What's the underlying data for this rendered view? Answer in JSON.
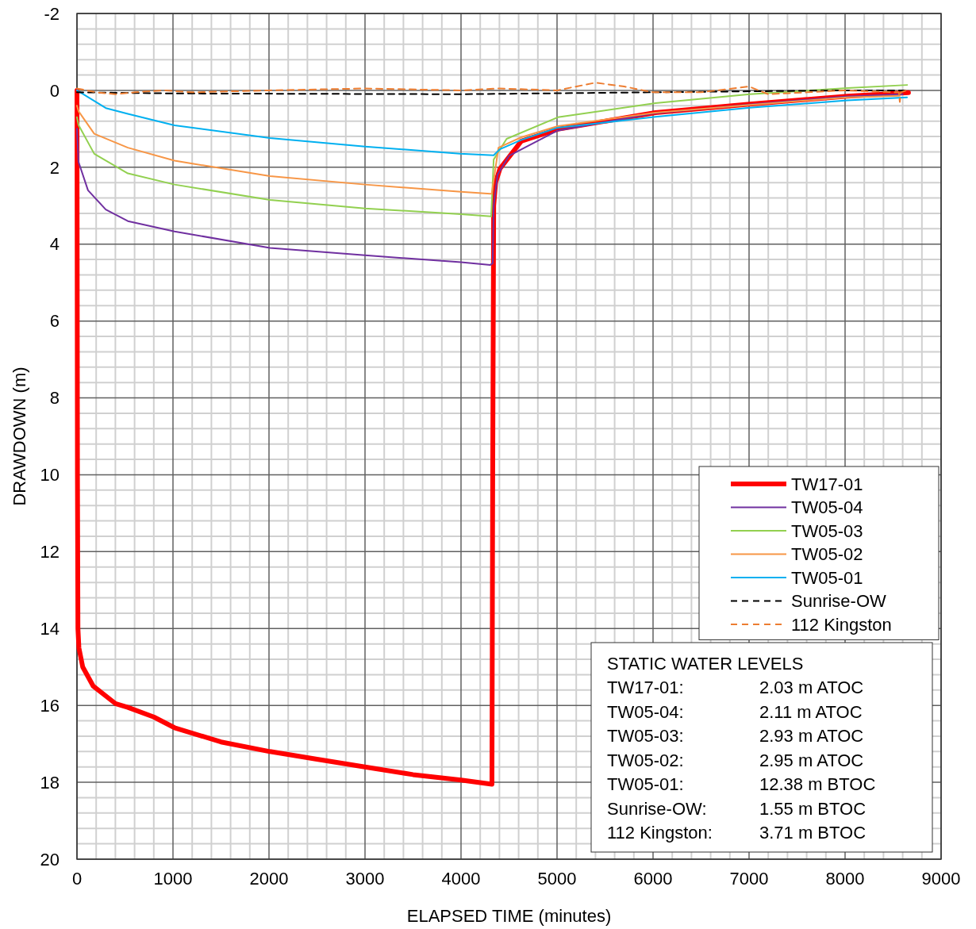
{
  "chart_data": {
    "type": "line",
    "xlabel": "ELAPSED TIME (minutes)",
    "ylabel": "DRAWDOWN (m)",
    "xlim": [
      0,
      9000
    ],
    "xticks": [
      0,
      1000,
      2000,
      3000,
      4000,
      5000,
      6000,
      7000,
      8000,
      9000
    ],
    "ylim": [
      20,
      -2
    ],
    "yticks": [
      -2,
      0,
      2,
      4,
      6,
      8,
      10,
      12,
      14,
      16,
      18,
      20
    ],
    "grid": true,
    "legend": "bottom right",
    "series": [
      {
        "name": "TW17-01",
        "color": "#ff0000",
        "line_style": "solid",
        "x": [
          0,
          5,
          10,
          20,
          60,
          170,
          400,
          530,
          800,
          1016,
          1500,
          2010,
          2500,
          3000,
          3500,
          4000,
          4322,
          4330,
          4340,
          4360,
          4405,
          4628,
          5008,
          6025,
          7008,
          8025,
          8660
        ],
        "values": [
          0,
          10,
          14,
          14.5,
          15,
          15.5,
          15.95,
          16.05,
          16.3,
          16.58,
          16.95,
          17.2,
          17.4,
          17.6,
          17.8,
          17.94,
          18.05,
          10,
          3,
          2.4,
          2.04,
          1.32,
          1.01,
          0.58,
          0.36,
          0.15,
          0.06
        ]
      },
      {
        "name": "TW05-04",
        "color": "#7030a0",
        "line_style": "solid",
        "x": [
          0,
          16,
          115,
          300,
          530,
          1016,
          2010,
          3000,
          4000,
          4305,
          4330,
          4340,
          4380,
          4500,
          5000,
          6000,
          7000,
          8000,
          8600
        ],
        "values": [
          1.0,
          1.86,
          2.6,
          3.1,
          3.4,
          3.67,
          4.1,
          4.29,
          4.47,
          4.54,
          4.5,
          3.0,
          2.2,
          1.7,
          1.05,
          0.6,
          0.37,
          0.16,
          0.1
        ]
      },
      {
        "name": "TW05-03",
        "color": "#92d050",
        "line_style": "solid",
        "x": [
          0,
          16,
          180,
          530,
          1016,
          2010,
          3000,
          4000,
          4314,
          4330,
          4340,
          4475,
          5008,
          6025,
          7008,
          8025,
          8645
        ],
        "values": [
          0.7,
          0.9,
          1.65,
          2.16,
          2.45,
          2.85,
          3.07,
          3.22,
          3.28,
          2.4,
          1.8,
          1.26,
          0.7,
          0.33,
          0.1,
          -0.06,
          -0.14
        ]
      },
      {
        "name": "TW05-02",
        "color": "#f79646",
        "line_style": "solid",
        "x": [
          0,
          16,
          180,
          530,
          1016,
          2010,
          3000,
          4000,
          4305,
          4320,
          4390,
          4628,
          5008,
          6025,
          7008,
          8025,
          8570
        ],
        "values": [
          0.4,
          0.54,
          1.13,
          1.49,
          1.83,
          2.23,
          2.45,
          2.64,
          2.69,
          2.69,
          1.49,
          1.22,
          0.93,
          0.58,
          0.38,
          0.18,
          0.14
        ]
      },
      {
        "name": "TW05-01",
        "color": "#00b0f0",
        "line_style": "solid",
        "x": [
          0,
          300,
          530,
          1016,
          2010,
          3000,
          3990,
          4340,
          4405,
          4628,
          5008,
          6025,
          7008,
          8025,
          8645
        ],
        "values": [
          0,
          0.46,
          0.61,
          0.91,
          1.24,
          1.46,
          1.65,
          1.69,
          1.53,
          1.29,
          0.97,
          0.69,
          0.45,
          0.26,
          0.18
        ]
      },
      {
        "name": "Sunrise-OW",
        "color": "#000000",
        "line_style": "dashed",
        "x": [
          0,
          1000,
          4000,
          6000,
          8000,
          8640
        ],
        "values": [
          0.05,
          0.08,
          0.1,
          0.05,
          0,
          0
        ]
      },
      {
        "name": "112 Kingston",
        "color": "#ed7d31",
        "line_style": "dashed",
        "x": [
          0,
          200,
          400,
          600,
          900,
          1200,
          2000,
          3000,
          4000,
          4400,
          5000,
          5400,
          5700,
          6000,
          6500,
          7000,
          7200,
          8000,
          8560,
          8570,
          8580,
          8640
        ],
        "values": [
          -0.05,
          0.05,
          0.1,
          0.05,
          0,
          0.05,
          0,
          -0.05,
          0,
          -0.05,
          0,
          -0.2,
          -0.1,
          0.05,
          0.05,
          -0.1,
          0.1,
          0,
          0.05,
          0.3,
          0.05,
          0
        ]
      }
    ],
    "annotations": [
      "STATIC WATER LEVELS",
      "TW17-01: 2.03 m ATOC",
      "TW05-04: 2.11 m ATOC",
      "TW05-03: 2.93 m ATOC",
      "TW05-02: 2.95 m ATOC",
      "TW05-01: 12.38 m BTOC",
      "Sunrise-OW: 1.55 m BTOC",
      "112 Kingston: 3.71 m BTOC"
    ]
  }
}
